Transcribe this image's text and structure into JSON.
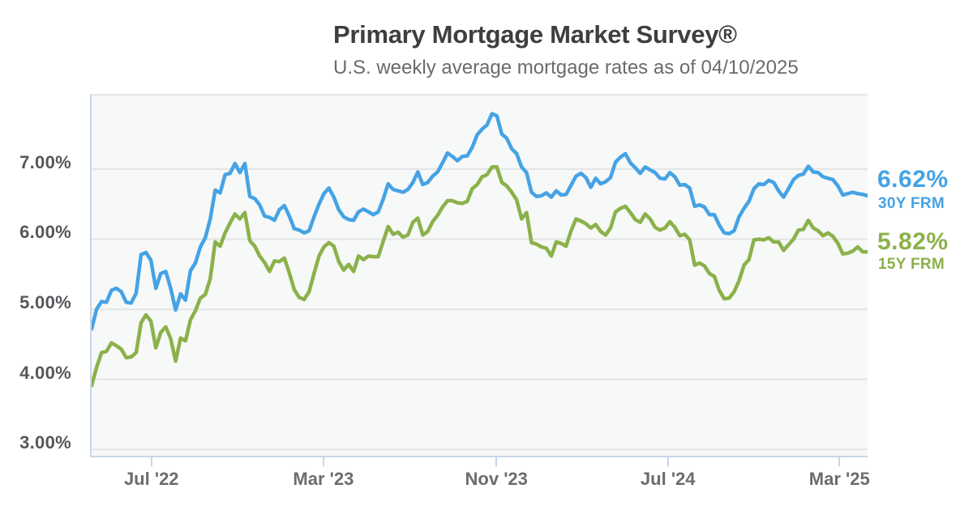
{
  "header": {
    "title": "Primary Mortgage Market Survey®",
    "subtitle": "U.S. weekly average mortgage rates as of 04/10/2025"
  },
  "annotations": [
    {
      "value": "6.62%",
      "label": "30Y FRM",
      "color": "#45a3e5"
    },
    {
      "value": "5.82%",
      "label": "15Y FRM",
      "color": "#8bb14a"
    }
  ],
  "colors": {
    "line_30y": "#45a3e5",
    "line_15y": "#8bb14a",
    "plot_background": "#f7f8f8",
    "gridline": "#e3e4e5",
    "axis_line": "#c9d5ea",
    "title_text": "#3d3e40",
    "subtitle_text": "#6a6b6d",
    "y_label_text": "#55575b",
    "x_label_text": "#6b6c6f"
  },
  "chart_data": {
    "type": "line",
    "title": "Primary Mortgage Market Survey®",
    "subtitle": "U.S. weekly average mortgage rates as of 04/10/2025",
    "grid": "horizontal-only",
    "legend_position": "right of line ends",
    "x_unit": "weeks (Apr 2022 – Apr 10 2025)",
    "y_axis": {
      "ticks": [
        "7.00%",
        "6.00%",
        "5.00%",
        "4.00%",
        "3.00%"
      ],
      "tick_values": [
        7,
        6,
        5,
        4,
        3
      ],
      "range": [
        2.91,
        8.05
      ]
    },
    "x_axis": {
      "total_points": 158,
      "ticks": [
        {
          "label": "Jul '22",
          "index": 12.1
        },
        {
          "label": "Mar '23",
          "index": 46.9
        },
        {
          "label": "Nov '23",
          "index": 81.9
        },
        {
          "label": "Jul '24",
          "index": 116.6
        },
        {
          "label": "Mar '25",
          "index": 151.3
        }
      ]
    },
    "series": [
      {
        "name": "30Y FRM",
        "color": "#45a3e5",
        "latest": 6.62,
        "values": [
          4.72,
          5.0,
          5.11,
          5.1,
          5.27,
          5.3,
          5.25,
          5.1,
          5.09,
          5.23,
          5.78,
          5.81,
          5.7,
          5.3,
          5.51,
          5.54,
          5.3,
          4.99,
          5.22,
          5.13,
          5.55,
          5.66,
          5.89,
          6.02,
          6.29,
          6.7,
          6.66,
          6.92,
          6.94,
          7.08,
          6.95,
          7.08,
          6.61,
          6.58,
          6.49,
          6.33,
          6.31,
          6.27,
          6.42,
          6.48,
          6.33,
          6.15,
          6.13,
          6.09,
          6.12,
          6.32,
          6.5,
          6.65,
          6.73,
          6.6,
          6.42,
          6.32,
          6.28,
          6.27,
          6.39,
          6.43,
          6.39,
          6.35,
          6.39,
          6.57,
          6.79,
          6.71,
          6.69,
          6.67,
          6.71,
          6.81,
          6.96,
          6.78,
          6.81,
          6.9,
          6.96,
          7.09,
          7.23,
          7.18,
          7.12,
          7.18,
          7.19,
          7.31,
          7.49,
          7.57,
          7.63,
          7.79,
          7.76,
          7.5,
          7.44,
          7.29,
          7.22,
          7.03,
          6.95,
          6.67,
          6.61,
          6.62,
          6.66,
          6.6,
          6.69,
          6.63,
          6.64,
          6.77,
          6.9,
          6.94,
          6.88,
          6.74,
          6.87,
          6.79,
          6.82,
          6.88,
          7.1,
          7.17,
          7.22,
          7.09,
          7.02,
          6.94,
          7.03,
          6.99,
          6.95,
          6.87,
          6.86,
          6.95,
          6.89,
          6.77,
          6.78,
          6.73,
          6.47,
          6.49,
          6.46,
          6.35,
          6.35,
          6.2,
          6.09,
          6.08,
          6.12,
          6.32,
          6.44,
          6.54,
          6.72,
          6.79,
          6.78,
          6.84,
          6.81,
          6.69,
          6.6,
          6.72,
          6.85,
          6.91,
          6.93,
          7.04,
          6.96,
          6.95,
          6.89,
          6.87,
          6.85,
          6.76,
          6.63,
          6.65,
          6.67,
          6.65,
          6.64,
          6.62
        ]
      },
      {
        "name": "15Y FRM",
        "color": "#8bb14a",
        "latest": 5.82,
        "values": [
          3.91,
          4.17,
          4.38,
          4.4,
          4.52,
          4.48,
          4.43,
          4.31,
          4.32,
          4.38,
          4.81,
          4.92,
          4.83,
          4.45,
          4.67,
          4.75,
          4.58,
          4.26,
          4.59,
          4.55,
          4.85,
          4.98,
          5.16,
          5.21,
          5.44,
          5.96,
          5.9,
          6.09,
          6.23,
          6.36,
          6.29,
          6.38,
          5.98,
          5.9,
          5.76,
          5.67,
          5.54,
          5.69,
          5.68,
          5.73,
          5.52,
          5.28,
          5.17,
          5.14,
          5.25,
          5.51,
          5.76,
          5.89,
          5.95,
          5.9,
          5.68,
          5.56,
          5.64,
          5.54,
          5.76,
          5.71,
          5.76,
          5.75,
          5.75,
          5.97,
          6.18,
          6.07,
          6.1,
          6.03,
          6.06,
          6.24,
          6.3,
          6.06,
          6.11,
          6.25,
          6.34,
          6.46,
          6.55,
          6.55,
          6.52,
          6.51,
          6.54,
          6.72,
          6.78,
          6.89,
          6.92,
          7.03,
          7.03,
          6.81,
          6.76,
          6.67,
          6.56,
          6.29,
          6.38,
          5.95,
          5.93,
          5.89,
          5.87,
          5.76,
          5.96,
          5.94,
          5.9,
          6.12,
          6.29,
          6.26,
          6.22,
          6.16,
          6.21,
          6.11,
          6.06,
          6.16,
          6.39,
          6.44,
          6.47,
          6.38,
          6.28,
          6.24,
          6.36,
          6.29,
          6.17,
          6.13,
          6.16,
          6.25,
          6.17,
          6.05,
          6.07,
          5.99,
          5.63,
          5.66,
          5.62,
          5.51,
          5.47,
          5.27,
          5.15,
          5.16,
          5.25,
          5.41,
          5.63,
          5.71,
          5.99,
          6.0,
          5.99,
          6.02,
          5.96,
          5.96,
          5.84,
          5.92,
          6.0,
          6.13,
          6.14,
          6.27,
          6.16,
          6.12,
          6.05,
          6.09,
          6.04,
          5.94,
          5.79,
          5.8,
          5.83,
          5.89,
          5.82,
          5.82
        ]
      }
    ]
  }
}
